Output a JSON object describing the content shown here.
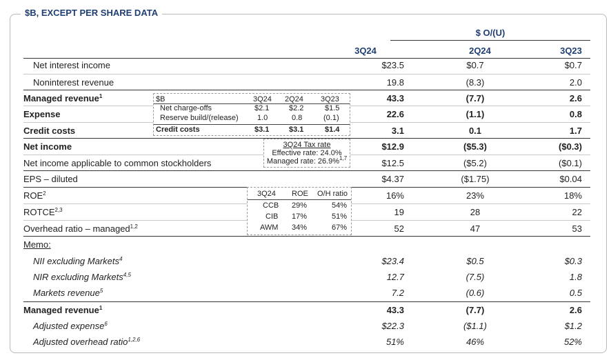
{
  "title": "$B, EXCEPT PER SHARE DATA",
  "column_group": "$ O/(U)",
  "columns": [
    "3Q24",
    "2Q24",
    "3Q23"
  ],
  "rows": [
    {
      "label": "Net interest income",
      "v": [
        "$23.5",
        "$0.7",
        "$0.7"
      ]
    },
    {
      "label": "Noninterest revenue",
      "v": [
        "19.8",
        "(8.3)",
        "2.0"
      ]
    },
    {
      "label": "Managed revenue",
      "sup": "1",
      "v": [
        "43.3",
        "(7.7)",
        "2.6"
      ]
    },
    {
      "label": "Expense",
      "v": [
        "22.6",
        "(1.1)",
        "0.8"
      ]
    },
    {
      "label": "Credit costs",
      "v": [
        "3.1",
        "0.1",
        "1.7"
      ]
    },
    {
      "label": "Net income",
      "v": [
        "$12.9",
        "($5.3)",
        "($0.3)"
      ]
    },
    {
      "label": "Net income applicable to common stockholders",
      "v": [
        "$12.5",
        "($5.2)",
        "($0.1)"
      ]
    },
    {
      "label": "EPS – diluted",
      "v": [
        "$4.37",
        "($1.75)",
        "$0.04"
      ]
    },
    {
      "label": "ROE",
      "sup": "2",
      "v": [
        "16%",
        "23%",
        "18%"
      ]
    },
    {
      "label": "ROTCE",
      "sup": "2,3",
      "v": [
        "19",
        "28",
        "22"
      ]
    },
    {
      "label": "Overhead ratio – managed",
      "sup": "1,2",
      "v": [
        "52",
        "47",
        "53"
      ]
    },
    {
      "label": "Memo:"
    },
    {
      "label": "NII excluding Markets",
      "sup": "4",
      "v": [
        "$23.4",
        "$0.5",
        "$0.3"
      ]
    },
    {
      "label": "NIR excluding Markets",
      "sup": "4,5",
      "v": [
        "12.7",
        "(7.5)",
        "1.8"
      ]
    },
    {
      "label": "Markets revenue",
      "sup": "5",
      "v": [
        "7.2",
        "(0.6)",
        "0.5"
      ]
    },
    {
      "label": "Managed revenue",
      "sup": "1",
      "v": [
        "43.3",
        "(7.7)",
        "2.6"
      ]
    },
    {
      "label": "Adjusted expense",
      "sup": "6",
      "v": [
        "$22.3",
        "($1.1)",
        "$1.2"
      ]
    },
    {
      "label": "Adjusted overhead ratio",
      "sup": "1,2,6",
      "v": [
        "51%",
        "46%",
        "52%"
      ]
    }
  ],
  "credit_inset": {
    "headers": [
      "$B",
      "3Q24",
      "2Q24",
      "3Q23"
    ],
    "rows": [
      {
        "label": "Net charge-offs",
        "v": [
          "$2.1",
          "$2.2",
          "$1.5"
        ]
      },
      {
        "label": "Reserve build/(release)",
        "v": [
          "1.0",
          "0.8",
          "(0.1)"
        ]
      },
      {
        "label": "Credit costs",
        "v": [
          "$3.1",
          "$3.1",
          "$1.4"
        ]
      }
    ]
  },
  "tax_inset": {
    "title": "3Q24 Tax rate",
    "effective": "Effective rate: 24.0%",
    "managed": "Managed rate: 26.9%",
    "managed_sup": "1,7"
  },
  "roe_inset": {
    "headers": [
      "3Q24",
      "ROE",
      "O/H ratio"
    ],
    "rows": [
      {
        "seg": "CCB",
        "roe": "29%",
        "oh": "54%"
      },
      {
        "seg": "CIB",
        "roe": "17%",
        "oh": "51%"
      },
      {
        "seg": "AWM",
        "roe": "34%",
        "oh": "67%"
      }
    ]
  }
}
